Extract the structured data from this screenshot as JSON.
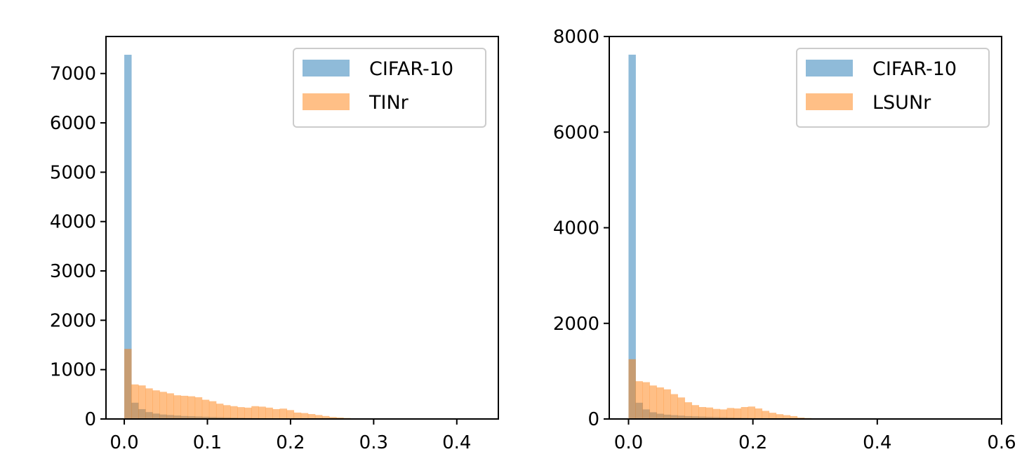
{
  "chart_data": [
    {
      "type": "histogram",
      "title": "",
      "xlabel": "",
      "ylabel": "",
      "xlim": [
        -0.022,
        0.45
      ],
      "ylim": [
        0,
        7750
      ],
      "xticks": [
        0.0,
        0.1,
        0.2,
        0.3,
        0.4
      ],
      "xtick_labels": [
        "0.0",
        "0.1",
        "0.2",
        "0.3",
        "0.4"
      ],
      "yticks": [
        0,
        1000,
        2000,
        3000,
        4000,
        5000,
        6000,
        7000
      ],
      "ytick_labels": [
        "0",
        "1000",
        "2000",
        "3000",
        "4000",
        "5000",
        "6000",
        "7000"
      ],
      "grid": false,
      "legend_position": "top-right",
      "series": [
        {
          "name": "CIFAR-10",
          "color": "#1f77b4",
          "alpha": 0.5,
          "bin_start": 0.0,
          "bin_width": 0.0085,
          "values": [
            7380,
            330,
            200,
            140,
            110,
            90,
            80,
            70,
            60,
            55,
            50,
            45,
            40,
            36,
            32,
            28,
            25,
            22,
            20,
            18,
            16,
            14,
            12,
            11,
            10,
            9,
            8,
            7,
            6,
            5,
            4,
            4,
            3,
            3,
            2,
            2,
            2,
            1,
            1,
            1,
            1,
            0,
            0,
            0,
            0,
            0,
            0,
            0,
            0,
            0
          ]
        },
        {
          "name": "TINr",
          "color": "#ff7f0e",
          "alpha": 0.5,
          "bin_start": 0.0,
          "bin_width": 0.0085,
          "values": [
            1420,
            700,
            680,
            620,
            580,
            550,
            520,
            480,
            470,
            460,
            440,
            390,
            360,
            310,
            280,
            260,
            240,
            230,
            260,
            250,
            230,
            200,
            210,
            180,
            130,
            120,
            100,
            80,
            60,
            40,
            30,
            20,
            15,
            10,
            10,
            5,
            5,
            5,
            3,
            2,
            2,
            1,
            1,
            0,
            0,
            0,
            0,
            0,
            0,
            0
          ]
        }
      ]
    },
    {
      "type": "histogram",
      "title": "",
      "xlabel": "",
      "ylabel": "",
      "xlim": [
        -0.031,
        0.6
      ],
      "ylim": [
        0,
        8000
      ],
      "xticks": [
        0.0,
        0.2,
        0.4,
        0.6
      ],
      "xtick_labels": [
        "0.0",
        "0.2",
        "0.4",
        "0.6"
      ],
      "yticks": [
        0,
        2000,
        4000,
        6000,
        8000
      ],
      "ytick_labels": [
        "0",
        "2000",
        "4000",
        "6000",
        "8000"
      ],
      "grid": false,
      "legend_position": "top-right",
      "series": [
        {
          "name": "CIFAR-10",
          "color": "#1f77b4",
          "alpha": 0.5,
          "bin_start": 0.0,
          "bin_width": 0.0113,
          "values": [
            7620,
            340,
            200,
            140,
            110,
            90,
            80,
            70,
            60,
            55,
            50,
            45,
            40,
            36,
            32,
            28,
            25,
            22,
            20,
            18,
            16,
            14,
            12,
            11,
            10,
            9,
            8,
            7,
            6,
            5,
            4,
            4,
            3,
            3,
            2,
            2,
            2,
            1,
            1,
            1,
            1,
            0,
            0,
            0,
            0,
            0,
            0,
            0,
            0,
            0
          ]
        },
        {
          "name": "LSUNr",
          "color": "#ff7f0e",
          "alpha": 0.5,
          "bin_start": 0.0,
          "bin_width": 0.0113,
          "values": [
            1250,
            790,
            770,
            700,
            660,
            620,
            520,
            450,
            350,
            290,
            250,
            240,
            210,
            200,
            230,
            220,
            250,
            260,
            220,
            170,
            130,
            100,
            80,
            60,
            30,
            20,
            10,
            5,
            5,
            0,
            0,
            0,
            0,
            0,
            0,
            0,
            0,
            0,
            0,
            0,
            0,
            0,
            0,
            0,
            0,
            0,
            0,
            0,
            0,
            0
          ]
        }
      ]
    }
  ]
}
